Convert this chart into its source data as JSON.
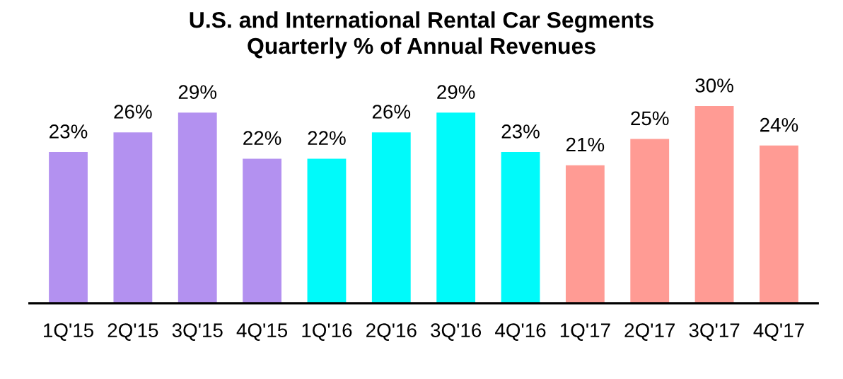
{
  "chart_data": {
    "type": "bar",
    "title": "U.S. and International Rental Car Segments\nQuarterly % of Annual Revenues",
    "categories": [
      "1Q'15",
      "2Q'15",
      "3Q'15",
      "4Q'15",
      "1Q'16",
      "2Q'16",
      "3Q'16",
      "4Q'16",
      "1Q'17",
      "2Q'17",
      "3Q'17",
      "4Q'17"
    ],
    "values": [
      23,
      26,
      29,
      22,
      22,
      26,
      29,
      23,
      21,
      25,
      30,
      24
    ],
    "value_labels": [
      "23%",
      "26%",
      "29%",
      "22%",
      "22%",
      "26%",
      "29%",
      "23%",
      "21%",
      "25%",
      "30%",
      "24%"
    ],
    "colors": [
      "#b391f0",
      "#b391f0",
      "#b391f0",
      "#b391f0",
      "#00fafa",
      "#00fafa",
      "#00fafa",
      "#00fafa",
      "#ff9b94",
      "#ff9b94",
      "#ff9b94",
      "#ff9b94"
    ],
    "grid": false,
    "legend": false
  }
}
